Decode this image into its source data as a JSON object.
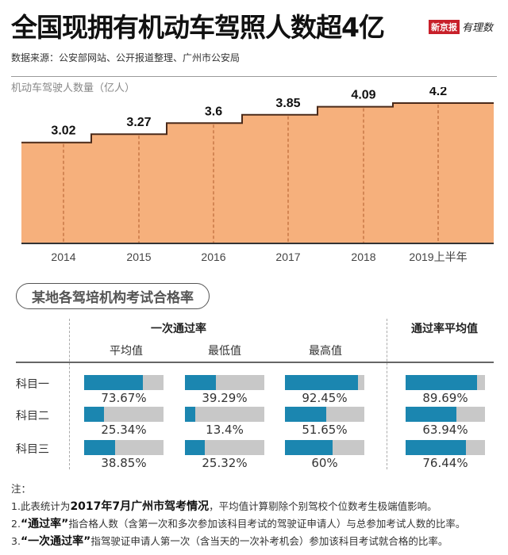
{
  "title": "全国现拥有机动车驾照人数超4亿",
  "logo": {
    "brand": "新京报",
    "sub": "有理数"
  },
  "source": "数据来源：公安部网站、公开报道整理、广州市公安局",
  "colors": {
    "area": "#f6b07c",
    "line": "#4a2a1a",
    "bar": "#1b86b0",
    "track": "#c8c8c8"
  },
  "chart_data": [
    {
      "type": "area",
      "subtype": "step",
      "ylabel": "机动车驾驶人数量（亿人）",
      "categories": [
        "2014",
        "2015",
        "2016",
        "2017",
        "2018",
        "2019上半年"
      ],
      "values": [
        3.02,
        3.27,
        3.6,
        3.85,
        4.09,
        4.2
      ],
      "labels": [
        "3.02",
        "3.27",
        "3.6",
        "3.85",
        "4.09",
        "4.2"
      ],
      "ylim": [
        0,
        4.2
      ],
      "grid": "vertical dashed"
    },
    {
      "type": "bar",
      "subtype": "progress-table",
      "title": "某地各驾培机构考试合格率",
      "group_headers": [
        "一次通过率",
        "通过率平均值"
      ],
      "columns": [
        "平均值",
        "最低值",
        "最高值",
        ""
      ],
      "rows": [
        {
          "name": "科目一",
          "values": [
            73.67,
            39.29,
            92.45,
            89.69
          ],
          "labels": [
            "73.67%",
            "39.29%",
            "92.45%",
            "89.69%"
          ]
        },
        {
          "name": "科目二",
          "values": [
            25.34,
            13.4,
            51.65,
            63.94
          ],
          "labels": [
            "25.34%",
            "13.4%",
            "51.65%",
            "63.94%"
          ]
        },
        {
          "name": "科目三",
          "values": [
            38.85,
            25.32,
            60,
            76.44
          ],
          "labels": [
            "38.85%",
            "25.32%",
            "60%",
            "76.44%"
          ]
        }
      ],
      "ylim": [
        0,
        100
      ]
    }
  ],
  "notes": {
    "head": "注：",
    "n1a": "1.此表统计为",
    "n1b": "2017年7月广州市驾考情况",
    "n1c": "，平均值计算剔除个别驾校个位数考生极端值影响。",
    "n2a": "2.",
    "n2b": "“通过率”",
    "n2c": "指合格人数（含第一次和多次参加该科目考试的驾驶证申请人）与总参加考试人数的比率。",
    "n3a": "3.",
    "n3b": "“一次通过率”",
    "n3c": "指驾驶证申请人第一次（含当天的一次补考机会）参加该科目考试就合格的比率。"
  }
}
